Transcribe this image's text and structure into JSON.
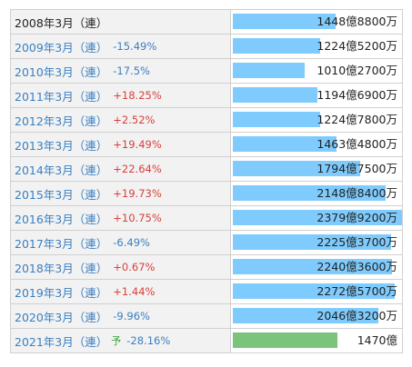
{
  "rows": [
    {
      "period": "2008年3月（連）",
      "change": null,
      "amount": {
        "value": 1448.88,
        "label": "1448億8800万"
      }
    },
    {
      "period": "2009年3月（連）",
      "change": "-15.49%",
      "amount": {
        "value": 1224.52,
        "label": "1224億5200万"
      }
    },
    {
      "period": "2010年3月（連）",
      "change": "-17.5%",
      "amount": {
        "value": 1010.27,
        "label": "1010億2700万"
      }
    },
    {
      "period": "2011年3月（連）",
      "change": "+18.25%",
      "amount": {
        "value": 1194.69,
        "label": "1194億6900万"
      }
    },
    {
      "period": "2012年3月（連）",
      "change": "+2.52%",
      "amount": {
        "value": 1224.78,
        "label": "1224億7800万"
      }
    },
    {
      "period": "2013年3月（連）",
      "change": "+19.49%",
      "amount": {
        "value": 1463.48,
        "label": "1463億4800万"
      }
    },
    {
      "period": "2014年3月（連）",
      "change": "+22.64%",
      "amount": {
        "value": 1794.75,
        "label": "1794億7500万"
      }
    },
    {
      "period": "2015年3月（連）",
      "change": "+19.73%",
      "amount": {
        "value": 2148.84,
        "label": "2148億8400万"
      }
    },
    {
      "period": "2016年3月（連）",
      "change": "+10.75%",
      "amount": {
        "value": 2379.92,
        "label": "2379億9200万"
      }
    },
    {
      "period": "2017年3月（連）",
      "change": "-6.49%",
      "amount": {
        "value": 2225.37,
        "label": "2225億3700万"
      }
    },
    {
      "period": "2018年3月（連）",
      "change": "+0.67%",
      "amount": {
        "value": 2240.36,
        "label": "2240億3600万"
      }
    },
    {
      "period": "2019年3月（連）",
      "change": "+1.44%",
      "amount": {
        "value": 2272.57,
        "label": "2272億5700万"
      }
    },
    {
      "period": "2020年3月（連）",
      "change": "-9.96%",
      "amount": {
        "value": 2046.32,
        "label": "2046億3200万"
      }
    },
    {
      "period": "2021年3月（連）",
      "forecast": "予",
      "change": "-28.16%",
      "amount": {
        "value": 1470,
        "label": "1470億"
      }
    }
  ]
}
